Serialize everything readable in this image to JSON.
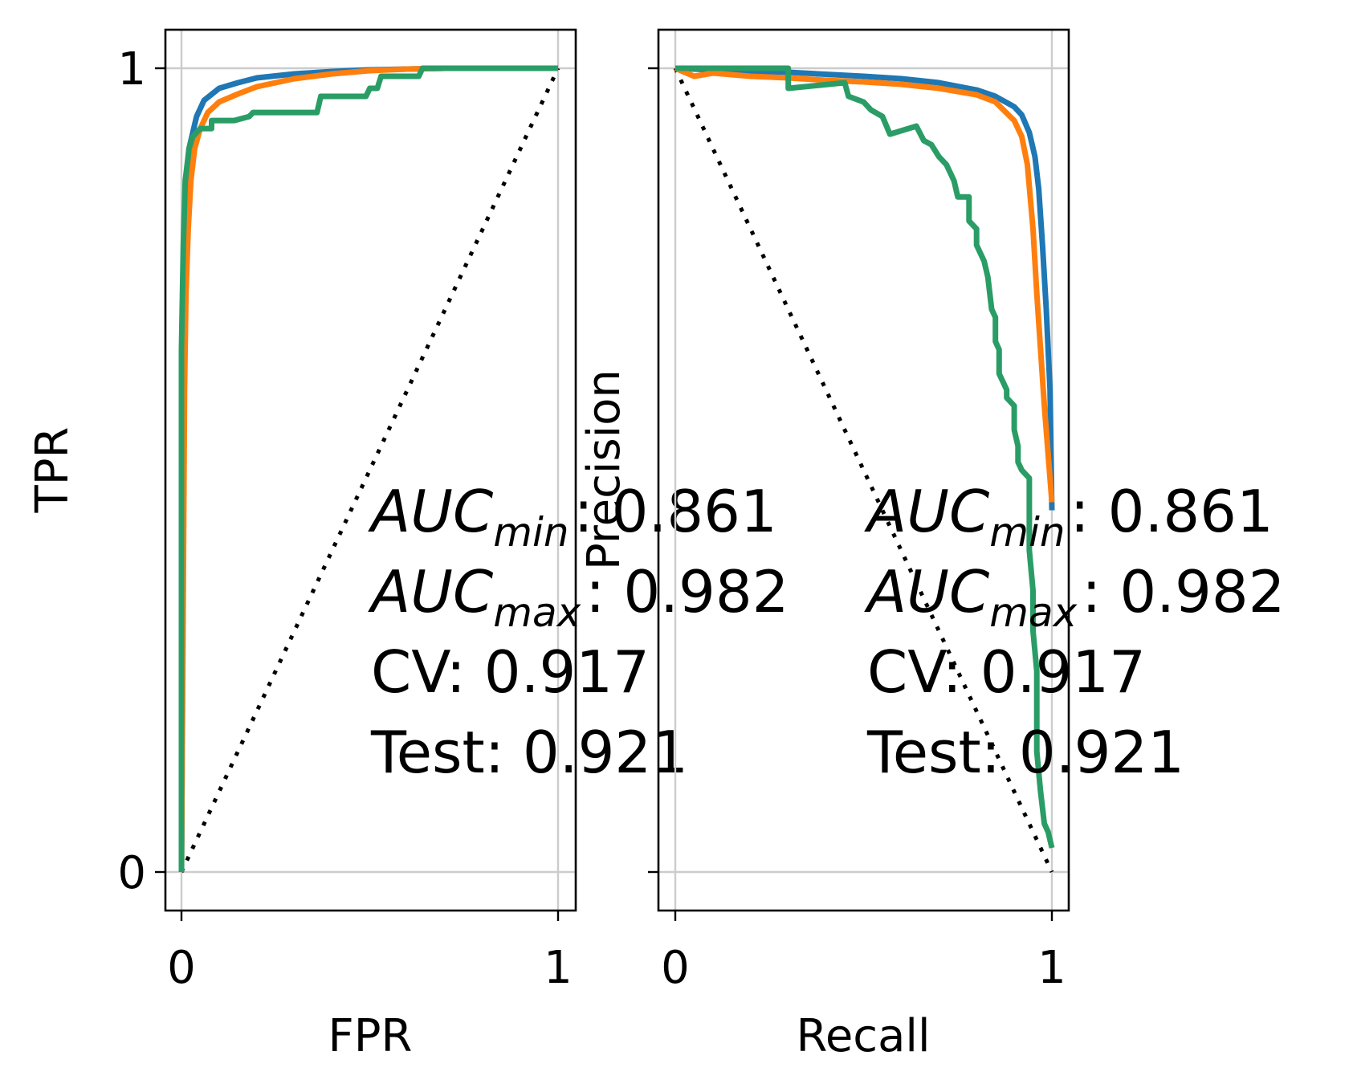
{
  "colors": {
    "blue": "#1f77b4",
    "orange": "#ff7f0e",
    "green": "#2a9d66"
  },
  "chart_data": [
    {
      "type": "line",
      "xlabel": "FPR",
      "ylabel": "TPR",
      "xlim": [
        0,
        1
      ],
      "ylim": [
        0,
        1
      ],
      "xticks": [
        "0",
        "1"
      ],
      "yticks": [
        "0",
        "1"
      ],
      "grid": true,
      "diagonal": [
        [
          0,
          0
        ],
        [
          1,
          1
        ]
      ],
      "annotation": {
        "auc_min_base": "AUC",
        "auc_min_sub": "min",
        "auc_min_value": ": 0.861",
        "auc_max_base": "AUC",
        "auc_max_sub": "max",
        "auc_max_value": ": 0.982",
        "cv": "CV: 0.917",
        "test": "Test: 0.921"
      },
      "series": [
        {
          "color": "blue",
          "points": [
            [
              0,
              0
            ],
            [
              0.003,
              0.25
            ],
            [
              0.004,
              0.55
            ],
            [
              0.007,
              0.75
            ],
            [
              0.01,
              0.82
            ],
            [
              0.015,
              0.87
            ],
            [
              0.02,
              0.9
            ],
            [
              0.03,
              0.92
            ],
            [
              0.04,
              0.94
            ],
            [
              0.06,
              0.96
            ],
            [
              0.1,
              0.975
            ],
            [
              0.15,
              0.982
            ],
            [
              0.2,
              0.988
            ],
            [
              0.3,
              0.993
            ],
            [
              0.4,
              0.996
            ],
            [
              0.5,
              0.998
            ],
            [
              0.6,
              0.999
            ],
            [
              0.7,
              1
            ],
            [
              1,
              1
            ]
          ]
        },
        {
          "color": "orange",
          "points": [
            [
              0,
              0
            ],
            [
              0.005,
              0.35
            ],
            [
              0.008,
              0.6
            ],
            [
              0.012,
              0.72
            ],
            [
              0.018,
              0.8
            ],
            [
              0.025,
              0.86
            ],
            [
              0.035,
              0.9
            ],
            [
              0.05,
              0.925
            ],
            [
              0.07,
              0.945
            ],
            [
              0.1,
              0.958
            ],
            [
              0.15,
              0.968
            ],
            [
              0.2,
              0.977
            ],
            [
              0.3,
              0.987
            ],
            [
              0.4,
              0.993
            ],
            [
              0.5,
              0.997
            ],
            [
              0.6,
              0.999
            ],
            [
              0.7,
              1
            ],
            [
              1,
              1
            ]
          ]
        },
        {
          "color": "green",
          "points": [
            [
              0,
              0
            ],
            [
              0,
              0.4
            ],
            [
              0,
              0.65
            ],
            [
              0.005,
              0.78
            ],
            [
              0.01,
              0.86
            ],
            [
              0.02,
              0.9
            ],
            [
              0.03,
              0.915
            ],
            [
              0.05,
              0.925
            ],
            [
              0.08,
              0.925
            ],
            [
              0.08,
              0.935
            ],
            [
              0.14,
              0.935
            ],
            [
              0.18,
              0.94
            ],
            [
              0.19,
              0.945
            ],
            [
              0.36,
              0.945
            ],
            [
              0.37,
              0.965
            ],
            [
              0.49,
              0.965
            ],
            [
              0.5,
              0.975
            ],
            [
              0.52,
              0.975
            ],
            [
              0.53,
              0.99
            ],
            [
              0.63,
              0.99
            ],
            [
              0.64,
              1
            ],
            [
              1,
              1
            ]
          ]
        }
      ]
    },
    {
      "type": "line",
      "xlabel": "Recall",
      "ylabel": "Precision",
      "xlim": [
        0,
        1
      ],
      "ylim": [
        0,
        1
      ],
      "xticks": [
        "0",
        "1"
      ],
      "yticks": [
        "",
        ""
      ],
      "grid": true,
      "diagonal": [
        [
          0,
          1
        ],
        [
          1,
          0
        ]
      ],
      "annotation": {
        "auc_min_base": "AUC",
        "auc_min_sub": "min",
        "auc_min_value": ": 0.861",
        "auc_max_base": "AUC",
        "auc_max_sub": "max",
        "auc_max_value": ": 0.982",
        "cv": "CV: 0.917",
        "test": "Test: 0.921"
      },
      "series": [
        {
          "color": "blue",
          "points": [
            [
              0,
              1
            ],
            [
              0.1,
              0.998
            ],
            [
              0.3,
              0.995
            ],
            [
              0.5,
              0.99
            ],
            [
              0.6,
              0.987
            ],
            [
              0.7,
              0.982
            ],
            [
              0.8,
              0.973
            ],
            [
              0.85,
              0.965
            ],
            [
              0.9,
              0.952
            ],
            [
              0.92,
              0.942
            ],
            [
              0.94,
              0.92
            ],
            [
              0.955,
              0.89
            ],
            [
              0.965,
              0.85
            ],
            [
              0.975,
              0.78
            ],
            [
              0.985,
              0.7
            ],
            [
              0.995,
              0.6
            ],
            [
              1,
              0.45
            ]
          ]
        },
        {
          "color": "orange",
          "points": [
            [
              0,
              1
            ],
            [
              0.05,
              0.99
            ],
            [
              0.1,
              0.994
            ],
            [
              0.2,
              0.99
            ],
            [
              0.3,
              0.988
            ],
            [
              0.4,
              0.985
            ],
            [
              0.5,
              0.983
            ],
            [
              0.6,
              0.98
            ],
            [
              0.7,
              0.975
            ],
            [
              0.8,
              0.967
            ],
            [
              0.85,
              0.958
            ],
            [
              0.9,
              0.935
            ],
            [
              0.92,
              0.915
            ],
            [
              0.935,
              0.88
            ],
            [
              0.95,
              0.8
            ],
            [
              0.96,
              0.72
            ],
            [
              0.97,
              0.65
            ],
            [
              0.98,
              0.58
            ],
            [
              0.99,
              0.52
            ],
            [
              1,
              0.46
            ]
          ]
        },
        {
          "color": "green",
          "points": [
            [
              0,
              1
            ],
            [
              0.3,
              1
            ],
            [
              0.3,
              0.975
            ],
            [
              0.45,
              0.982
            ],
            [
              0.46,
              0.965
            ],
            [
              0.5,
              0.958
            ],
            [
              0.52,
              0.948
            ],
            [
              0.55,
              0.94
            ],
            [
              0.57,
              0.918
            ],
            [
              0.64,
              0.928
            ],
            [
              0.66,
              0.91
            ],
            [
              0.68,
              0.905
            ],
            [
              0.7,
              0.89
            ],
            [
              0.72,
              0.88
            ],
            [
              0.74,
              0.86
            ],
            [
              0.75,
              0.84
            ],
            [
              0.78,
              0.84
            ],
            [
              0.78,
              0.81
            ],
            [
              0.8,
              0.8
            ],
            [
              0.8,
              0.78
            ],
            [
              0.82,
              0.76
            ],
            [
              0.83,
              0.74
            ],
            [
              0.84,
              0.7
            ],
            [
              0.85,
              0.69
            ],
            [
              0.85,
              0.66
            ],
            [
              0.86,
              0.65
            ],
            [
              0.86,
              0.62
            ],
            [
              0.87,
              0.61
            ],
            [
              0.88,
              0.6
            ],
            [
              0.88,
              0.59
            ],
            [
              0.9,
              0.58
            ],
            [
              0.9,
              0.55
            ],
            [
              0.91,
              0.53
            ],
            [
              0.91,
              0.51
            ],
            [
              0.92,
              0.5
            ],
            [
              0.94,
              0.49
            ],
            [
              0.94,
              0.4
            ],
            [
              0.95,
              0.35
            ],
            [
              0.95,
              0.3
            ],
            [
              0.96,
              0.25
            ],
            [
              0.96,
              0.15
            ],
            [
              0.97,
              0.1
            ],
            [
              0.98,
              0.06
            ],
            [
              0.99,
              0.05
            ],
            [
              1,
              0.03
            ]
          ]
        }
      ]
    }
  ]
}
